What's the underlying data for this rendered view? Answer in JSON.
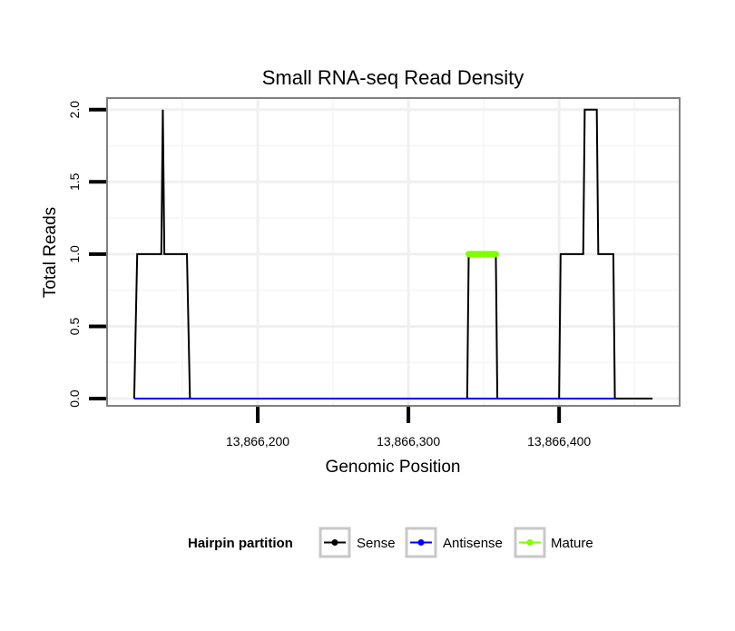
{
  "chart_data": {
    "type": "line",
    "title": "Small RNA-seq Read Density",
    "xlabel": "Genomic Position",
    "ylabel": "Total Reads",
    "xlim": [
      13866100,
      13866480
    ],
    "ylim": [
      -0.05,
      2.08
    ],
    "x_ticks": [
      13866200,
      13866300,
      13866400
    ],
    "x_tick_labels": [
      "13,866,200",
      "13,866,300",
      "13,866,400"
    ],
    "y_ticks": [
      0,
      0.5,
      1,
      1.5,
      2
    ],
    "y_tick_labels": [
      "0.0",
      "0.5",
      "1.0",
      "1.5",
      "2.0"
    ],
    "legend": {
      "title": "Hairpin partition",
      "placement": "bottom",
      "entries": [
        "Sense",
        "Antisense",
        "Mature"
      ]
    },
    "series": [
      {
        "name": "Sense",
        "color": "#000000",
        "x": [
          13866118,
          13866120,
          13866136,
          13866137,
          13866138,
          13866153,
          13866155,
          13866339,
          13866340,
          13866358,
          13866359,
          13866400,
          13866401,
          13866416,
          13866417,
          13866425,
          13866426,
          13866436,
          13866437,
          13866462
        ],
        "y": [
          0,
          1,
          1,
          2,
          1,
          1,
          0,
          0,
          1,
          1,
          0,
          0,
          1,
          1,
          2,
          2,
          1,
          1,
          0,
          0
        ]
      },
      {
        "name": "Antisense",
        "color": "#0000ff",
        "x": [
          13866118,
          13866155,
          13866339,
          13866358,
          13866400,
          13866437
        ],
        "y": [
          0,
          0,
          0,
          0,
          0,
          0
        ]
      },
      {
        "name": "Mature",
        "color": "#7fff00",
        "x": [
          13866340,
          13866358
        ],
        "y": [
          1,
          1
        ]
      }
    ]
  }
}
